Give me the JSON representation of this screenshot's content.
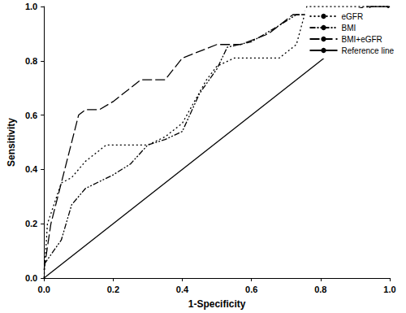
{
  "chart_data": {
    "type": "line",
    "x_label": "1-Specificity",
    "y_label": "Sensitivity",
    "xlim": [
      0,
      1
    ],
    "ylim": [
      0,
      1
    ],
    "xticks": [
      {
        "value": 0,
        "label": "0.0"
      },
      0.2,
      0.4,
      0.6,
      0.8,
      {
        "value": 1,
        "label": "1.0"
      }
    ],
    "yticks": [
      {
        "value": 0,
        "label": "0.0"
      },
      0.2,
      0.4,
      0.6,
      0.8,
      {
        "value": 1,
        "label": "1.0"
      }
    ],
    "grid": false,
    "legend": "top-right",
    "series": [
      {
        "name": "eGFR",
        "color": "#000000",
        "line_style": "dotted",
        "x": [
          0,
          0.01,
          0.05,
          0.08,
          0.12,
          0.18,
          0.3,
          0.35,
          0.4,
          0.47,
          0.5,
          0.55,
          0.62,
          0.68,
          0.73,
          0.76,
          1
        ],
        "values": [
          0,
          0.2,
          0.35,
          0.37,
          0.43,
          0.49,
          0.49,
          0.52,
          0.57,
          0.73,
          0.78,
          0.81,
          0.81,
          0.81,
          0.86,
          1,
          1
        ]
      },
      {
        "name": "BMI",
        "color": "#000000",
        "line_style": "dash-dot-dot",
        "x": [
          0,
          0.05,
          0.08,
          0.12,
          0.2,
          0.25,
          0.3,
          0.35,
          0.4,
          0.45,
          0.5,
          0.53,
          0.6,
          0.68,
          0.73,
          0.8,
          0.88,
          0.95,
          1
        ],
        "values": [
          0.05,
          0.14,
          0.27,
          0.33,
          0.38,
          0.42,
          0.49,
          0.51,
          0.54,
          0.68,
          0.77,
          0.85,
          0.87,
          0.93,
          0.97,
          0.97,
          0.97,
          1,
          1
        ]
      },
      {
        "name": "BMI+eGFR",
        "color": "#000000",
        "line_style": "dashed",
        "x": [
          0,
          0.02,
          0.05,
          0.1,
          0.12,
          0.16,
          0.2,
          0.28,
          0.35,
          0.4,
          0.5,
          0.57,
          0.65,
          0.72,
          0.85,
          0.93,
          1
        ],
        "values": [
          0.03,
          0.2,
          0.35,
          0.6,
          0.62,
          0.62,
          0.65,
          0.73,
          0.73,
          0.81,
          0.86,
          0.86,
          0.9,
          0.97,
          0.97,
          1,
          1
        ]
      },
      {
        "name": "Reference line",
        "color": "#000000",
        "line_style": "solid",
        "x": [
          0,
          1
        ],
        "values": [
          0,
          1
        ]
      }
    ]
  }
}
